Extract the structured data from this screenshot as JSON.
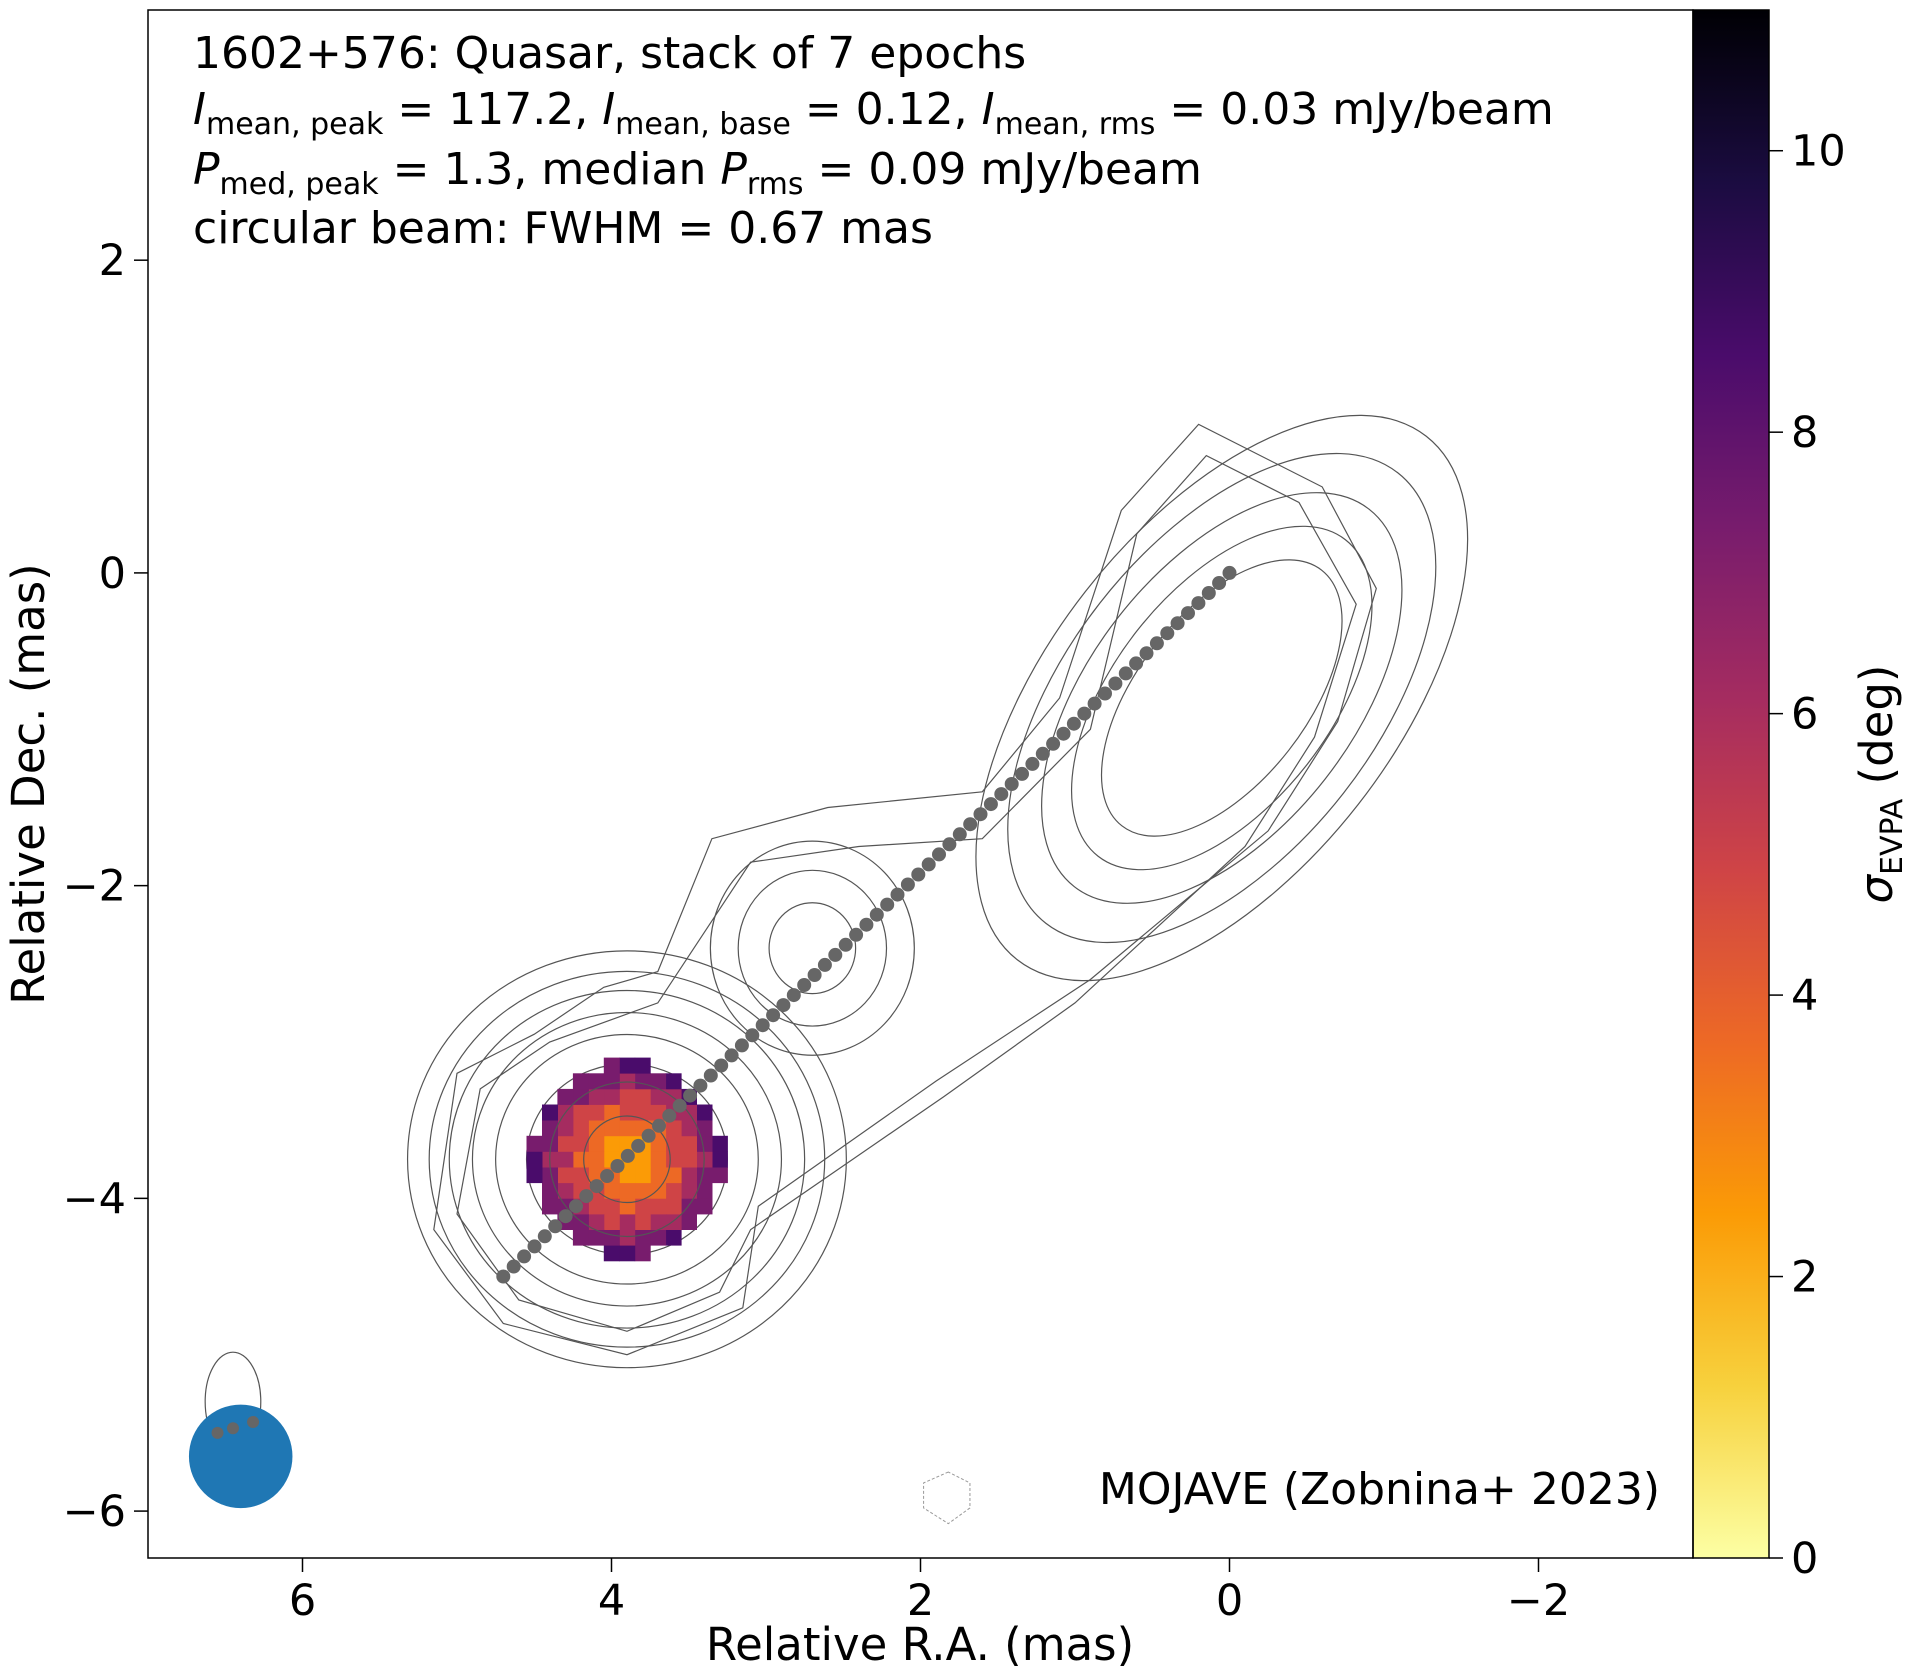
{
  "chart_data": {
    "type": "heatmap",
    "annotations": {
      "line1": "1602+576: Quasar, stack of 7 epochs",
      "line2": {
        "i1": "I",
        "s1": "mean, peak",
        "v1": " = 117.2, ",
        "i2": "I",
        "s2": "mean, base",
        "v2": " = 0.12, ",
        "i3": "I",
        "s3": "mean, rms",
        "v3": " = 0.03 mJy/beam"
      },
      "line3": {
        "i1": "P",
        "s1": "med, peak",
        "v1": " = 1.3, median ",
        "i2": "P",
        "s2": "rms",
        "v2": " = 0.09 mJy/beam"
      },
      "line4": "circular beam: FWHM = 0.67 mas",
      "credit": "MOJAVE (Zobnina+ 2023)"
    },
    "xlabel": "Relative R.A. (mas)",
    "ylabel": "Relative Dec. (mas)",
    "colorbar_label": {
      "symbol": "σ",
      "sub": "EVPA",
      "unit": " (deg)"
    },
    "xlim": [
      7.0,
      -3.0
    ],
    "ylim": [
      -6.3,
      3.6
    ],
    "x_ticks": [
      {
        "v": 6,
        "label": "6"
      },
      {
        "v": 4,
        "label": "4"
      },
      {
        "v": 2,
        "label": "2"
      },
      {
        "v": 0,
        "label": "0"
      },
      {
        "v": -2,
        "label": "−2"
      }
    ],
    "y_ticks": [
      {
        "v": 2,
        "label": "2"
      },
      {
        "v": 0,
        "label": "0"
      },
      {
        "v": -2,
        "label": "−2"
      },
      {
        "v": -4,
        "label": "−4"
      },
      {
        "v": -6,
        "label": "−6"
      }
    ],
    "colorbar_range": [
      0,
      11
    ],
    "colorbar_ticks": [
      {
        "v": 0,
        "label": "0"
      },
      {
        "v": 2,
        "label": "2"
      },
      {
        "v": 4,
        "label": "4"
      },
      {
        "v": 6,
        "label": "6"
      },
      {
        "v": 8,
        "label": "8"
      },
      {
        "v": 10,
        "label": "10"
      }
    ],
    "colormap": [
      "#fcffa4",
      "#f7d13d",
      "#fb9b06",
      "#ed6925",
      "#cf4446",
      "#a52c60",
      "#781c6d",
      "#4a0c6b",
      "#1b0c41",
      "#000004"
    ],
    "ridge_line": {
      "x_start": 4.7,
      "y_start": -4.5,
      "x_end": 0.0,
      "y_end": 0.0,
      "color": "#666666"
    },
    "beam": {
      "x": 6.4,
      "y": -5.65,
      "fwhm_mas": 0.67,
      "color": "#1f77b4"
    },
    "sigma_evpa_region": {
      "center_x": 3.9,
      "center_y": -3.75,
      "approx_range_deg": [
        2,
        9
      ]
    }
  }
}
